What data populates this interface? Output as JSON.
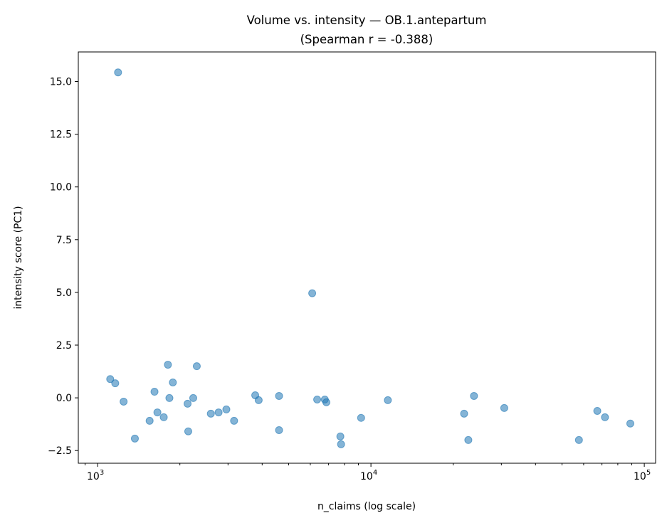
{
  "chart_data": {
    "type": "scatter",
    "title": "Volume vs. intensity — OB.1.antepartum",
    "subtitle": "(Spearman r = -0.388)",
    "xlabel": "n_claims (log scale)",
    "ylabel": "intensity score (PC1)",
    "xscale": "log",
    "xlim": [
      850,
      110000
    ],
    "ylim": [
      -3.1,
      16.4
    ],
    "xticks": [
      {
        "value": 1000,
        "base": "10",
        "exp": "3"
      },
      {
        "value": 10000,
        "base": "10",
        "exp": "4"
      },
      {
        "value": 100000,
        "base": "10",
        "exp": "5"
      }
    ],
    "yticks": [
      {
        "value": -2.5,
        "label": "−2.5"
      },
      {
        "value": 0,
        "label": "0.0"
      },
      {
        "value": 2.5,
        "label": "2.5"
      },
      {
        "value": 5,
        "label": "5.0"
      },
      {
        "value": 7.5,
        "label": "7.5"
      },
      {
        "value": 10,
        "label": "10.0"
      },
      {
        "value": 12.5,
        "label": "12.5"
      },
      {
        "value": 15,
        "label": "15.0"
      }
    ],
    "grid": false,
    "marker_color": "#1f77b4",
    "points": [
      [
        1112,
        0.89
      ],
      [
        1160,
        0.69
      ],
      [
        1188,
        15.43
      ],
      [
        1245,
        -0.18
      ],
      [
        1369,
        -1.93
      ],
      [
        1550,
        -1.09
      ],
      [
        1615,
        0.29
      ],
      [
        1655,
        -0.69
      ],
      [
        1746,
        -0.92
      ],
      [
        1808,
        1.57
      ],
      [
        1831,
        -0.01
      ],
      [
        1885,
        0.73
      ],
      [
        2134,
        -0.28
      ],
      [
        2146,
        -1.59
      ],
      [
        2238,
        -0.01
      ],
      [
        2306,
        1.5
      ],
      [
        2596,
        -0.75
      ],
      [
        2771,
        -0.69
      ],
      [
        2958,
        -0.55
      ],
      [
        3157,
        -1.09
      ],
      [
        3773,
        0.12
      ],
      [
        3884,
        -0.11
      ],
      [
        4611,
        0.09
      ],
      [
        4611,
        -1.53
      ],
      [
        6097,
        4.96
      ],
      [
        6357,
        -0.08
      ],
      [
        6780,
        -0.08
      ],
      [
        6868,
        -0.21
      ],
      [
        7728,
        -1.83
      ],
      [
        7774,
        -2.2
      ],
      [
        9205,
        -0.95
      ],
      [
        11530,
        -0.11
      ],
      [
        21920,
        -0.75
      ],
      [
        22710,
        -2.0
      ],
      [
        23820,
        0.09
      ],
      [
        30740,
        -0.48
      ],
      [
        57660,
        -2.0
      ],
      [
        67300,
        -0.62
      ],
      [
        71800,
        -0.92
      ],
      [
        88900,
        -1.22
      ]
    ]
  }
}
